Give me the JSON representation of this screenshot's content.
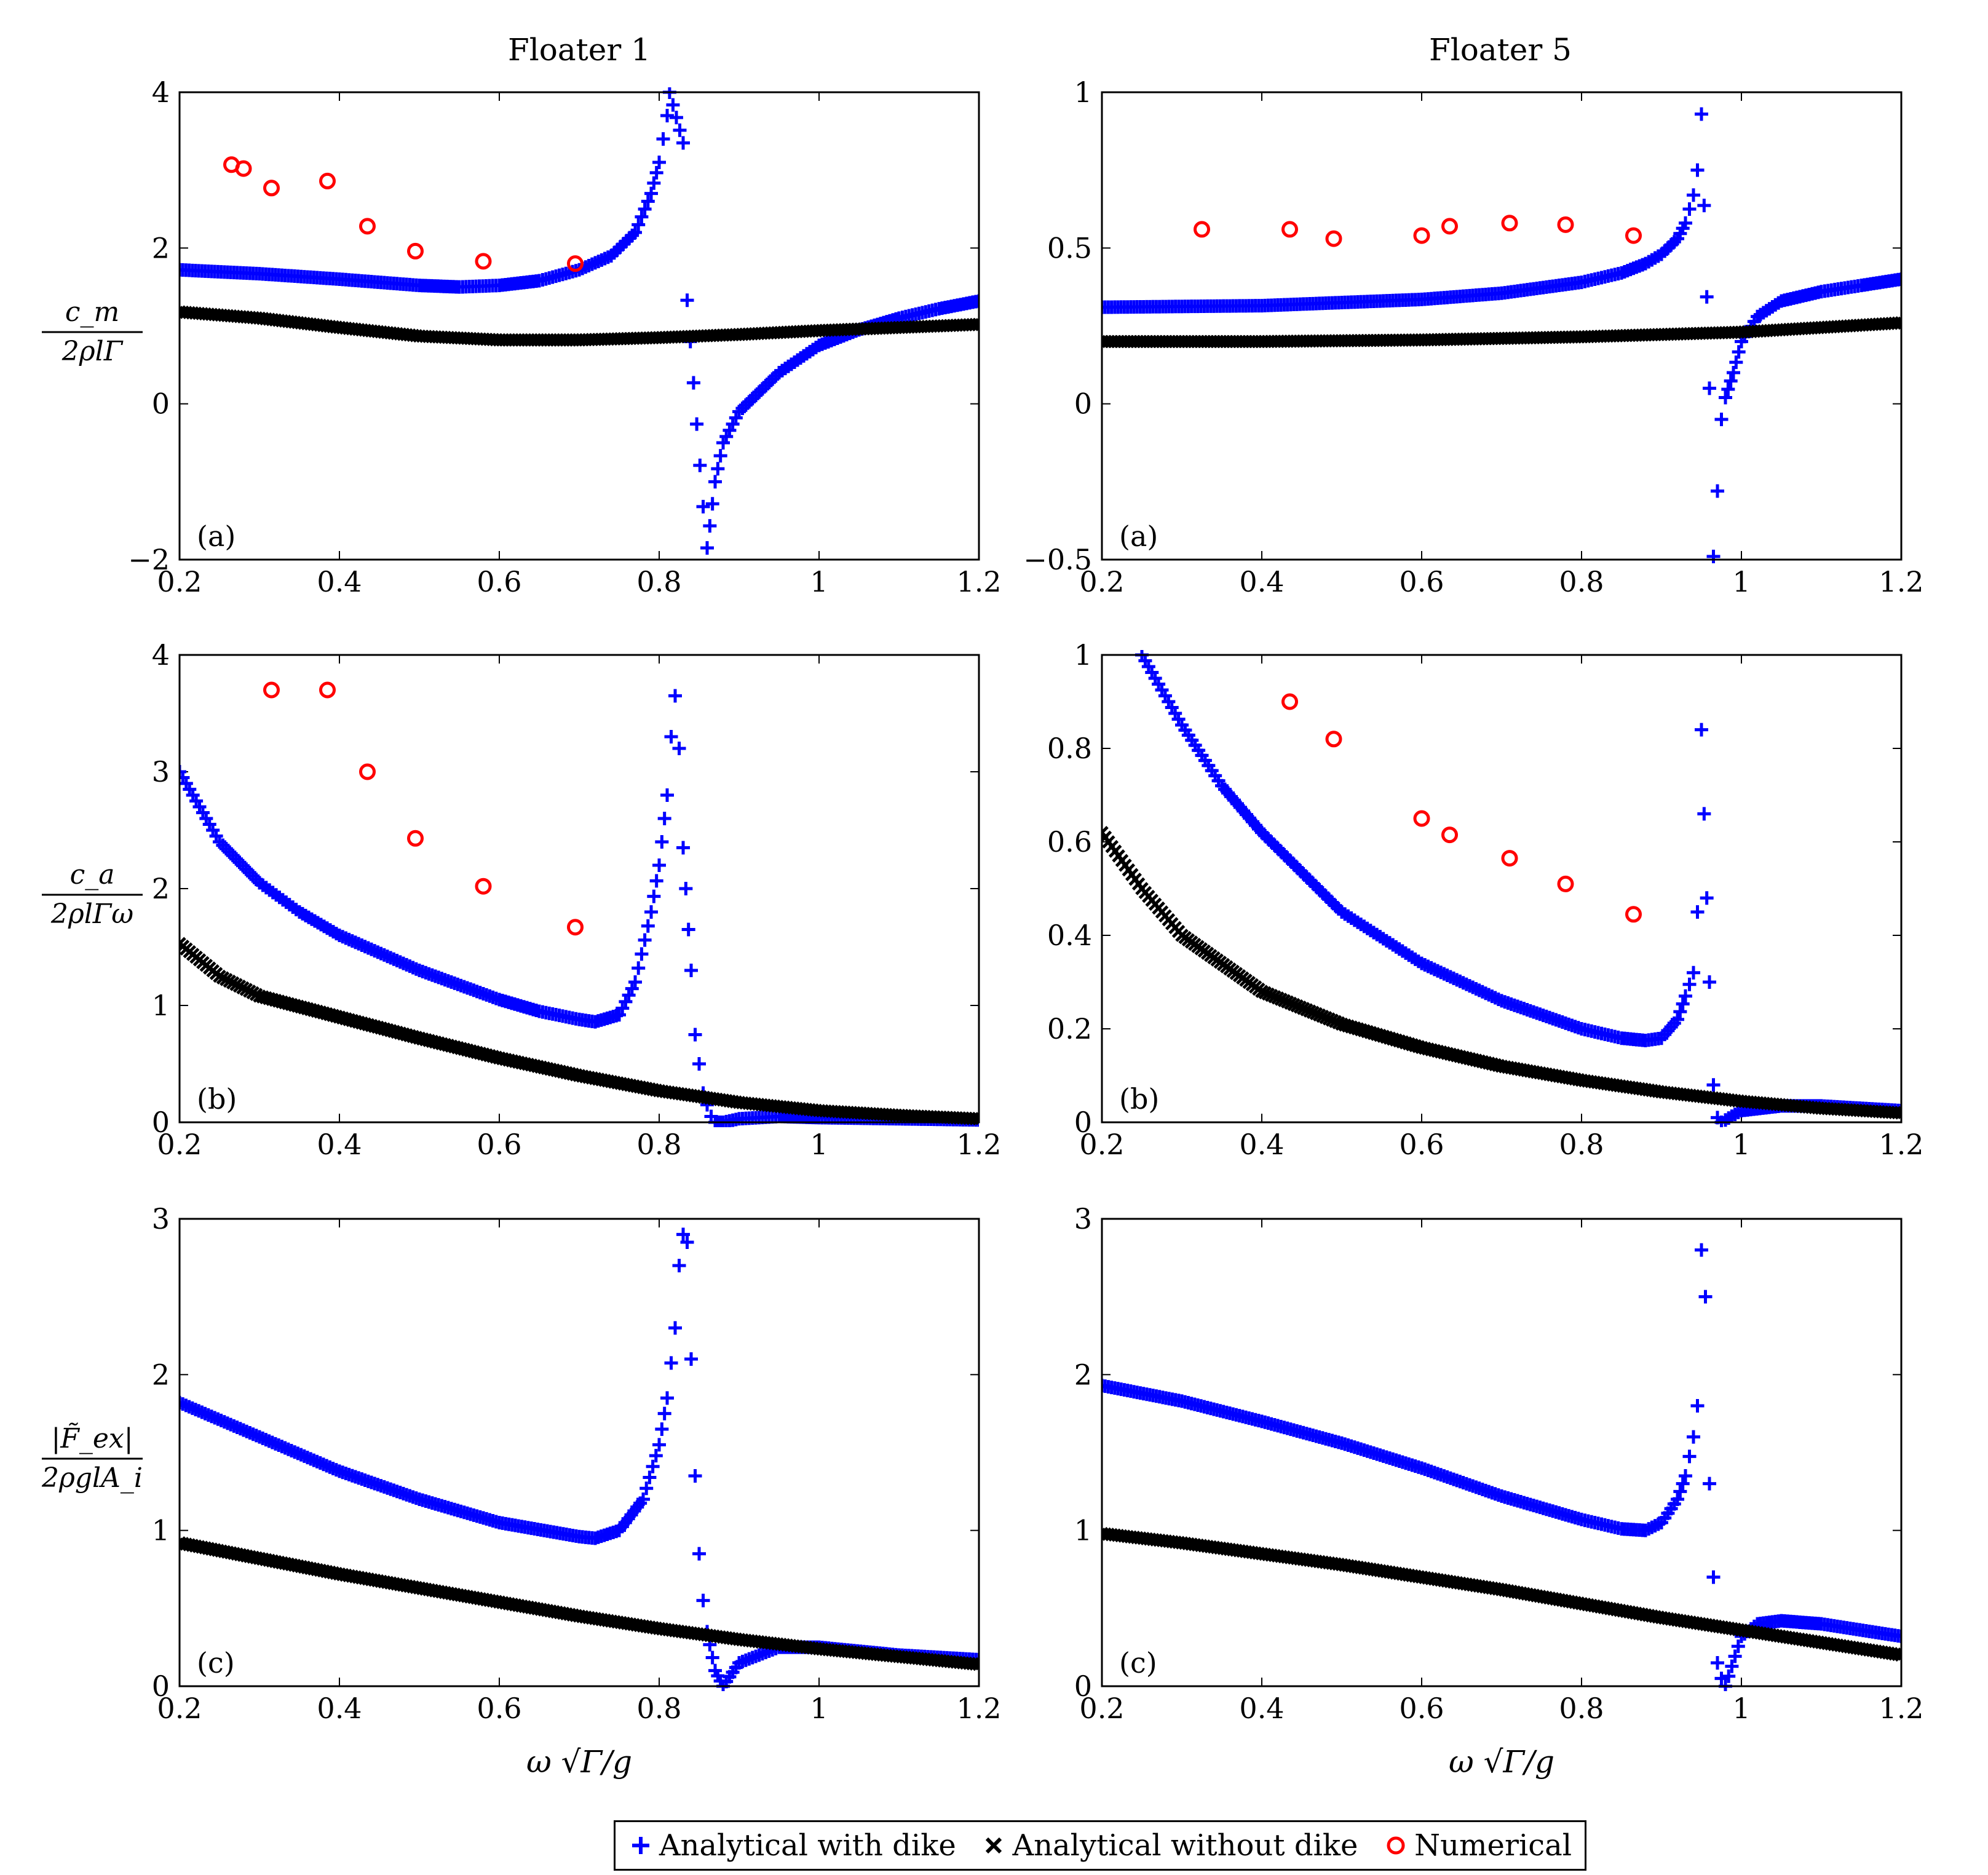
{
  "columns": [
    "Floater 1",
    "Floater 5"
  ],
  "legend": [
    {
      "label": "Analytical with dike",
      "color": "#0000ff",
      "marker": "plus"
    },
    {
      "label": "Analytical without dike",
      "color": "#000000",
      "marker": "cross"
    },
    {
      "label": "Numerical",
      "color": "#ff0000",
      "marker": "circle"
    }
  ],
  "xlabel": "ω √Γ/g",
  "chart_data": [
    {
      "type": "scatter",
      "column": "Floater 1",
      "row": "cm",
      "panel_label": "(a)",
      "ylabel": "c_m / 2ρlΓ",
      "xlim": [
        0.2,
        1.2
      ],
      "ylim": [
        -2,
        4
      ],
      "xticks": [
        "0.2",
        "0.4",
        "0.6",
        "0.8",
        "1",
        "1.2"
      ],
      "xtick_values": [
        0.2,
        0.4,
        0.6,
        0.8,
        1.0,
        1.2
      ],
      "yticks": [
        "−2",
        "0",
        "2",
        "4"
      ],
      "ytick_values": [
        -2,
        0,
        2,
        4
      ],
      "series": [
        {
          "name": "Analytical with dike",
          "x": [
            0.2,
            0.3,
            0.4,
            0.5,
            0.55,
            0.6,
            0.65,
            0.7,
            0.74,
            0.77,
            0.79,
            0.8,
            0.805,
            0.81,
            0.813,
            0.83,
            0.835,
            0.855,
            0.86,
            0.87,
            0.88,
            0.9,
            0.95,
            1.0,
            1.05,
            1.1,
            1.15,
            1.2
          ],
          "y": [
            1.72,
            1.67,
            1.6,
            1.52,
            1.5,
            1.52,
            1.58,
            1.72,
            1.9,
            2.2,
            2.7,
            3.1,
            3.4,
            3.7,
            4.0,
            3.35,
            1.33,
            -1.32,
            -1.85,
            -1.0,
            -0.5,
            -0.1,
            0.4,
            0.75,
            0.95,
            1.1,
            1.22,
            1.32
          ]
        },
        {
          "name": "Analytical without dike",
          "x": [
            0.2,
            0.3,
            0.4,
            0.5,
            0.6,
            0.7,
            0.8,
            0.9,
            1.0,
            1.1,
            1.2
          ],
          "y": [
            1.18,
            1.1,
            0.98,
            0.87,
            0.82,
            0.82,
            0.85,
            0.89,
            0.94,
            0.98,
            1.02
          ]
        },
        {
          "name": "Numerical",
          "x": [
            0.265,
            0.28,
            0.315,
            0.385,
            0.435,
            0.495,
            0.58,
            0.695
          ],
          "y": [
            3.07,
            3.02,
            2.77,
            2.86,
            2.28,
            1.96,
            1.83,
            1.8
          ]
        }
      ]
    },
    {
      "type": "scatter",
      "column": "Floater 5",
      "row": "cm",
      "panel_label": "(a)",
      "ylabel": "",
      "xlim": [
        0.2,
        1.2
      ],
      "ylim": [
        -0.5,
        1
      ],
      "xticks": [
        "0.2",
        "0.4",
        "0.6",
        "0.8",
        "1",
        "1.2"
      ],
      "xtick_values": [
        0.2,
        0.4,
        0.6,
        0.8,
        1.0,
        1.2
      ],
      "yticks": [
        "−0.5",
        "0",
        "0.5",
        "1"
      ],
      "ytick_values": [
        -0.5,
        0,
        0.5,
        1
      ],
      "series": [
        {
          "name": "Analytical with dike",
          "x": [
            0.2,
            0.4,
            0.6,
            0.7,
            0.8,
            0.85,
            0.88,
            0.9,
            0.92,
            0.93,
            0.94,
            0.945,
            0.95,
            0.96,
            0.965,
            0.97,
            0.975,
            0.98,
            0.99,
            1.0,
            1.02,
            1.05,
            1.1,
            1.15,
            1.2
          ],
          "y": [
            0.31,
            0.315,
            0.335,
            0.355,
            0.39,
            0.42,
            0.45,
            0.48,
            0.53,
            0.58,
            0.67,
            0.75,
            0.93,
            0.05,
            -0.49,
            -0.28,
            -0.05,
            0.02,
            0.1,
            0.2,
            0.28,
            0.33,
            0.36,
            0.38,
            0.4
          ]
        },
        {
          "name": "Analytical without dike",
          "x": [
            0.2,
            0.4,
            0.6,
            0.8,
            1.0,
            1.2
          ],
          "y": [
            0.2,
            0.2,
            0.205,
            0.215,
            0.23,
            0.26
          ]
        },
        {
          "name": "Numerical",
          "x": [
            0.325,
            0.435,
            0.49,
            0.6,
            0.635,
            0.71,
            0.78,
            0.865
          ],
          "y": [
            0.56,
            0.56,
            0.53,
            0.54,
            0.57,
            0.58,
            0.575,
            0.54
          ]
        }
      ]
    },
    {
      "type": "scatter",
      "column": "Floater 1",
      "row": "ca",
      "panel_label": "(b)",
      "ylabel": "c_a / 2ρlΓω",
      "xlim": [
        0.2,
        1.2
      ],
      "ylim": [
        0,
        4
      ],
      "xticks": [
        "0.2",
        "0.4",
        "0.6",
        "0.8",
        "1",
        "1.2"
      ],
      "xtick_values": [
        0.2,
        0.4,
        0.6,
        0.8,
        1.0,
        1.2
      ],
      "yticks": [
        "0",
        "1",
        "2",
        "3",
        "4"
      ],
      "ytick_values": [
        0,
        1,
        2,
        3,
        4
      ],
      "series": [
        {
          "name": "Analytical with dike",
          "x": [
            0.2,
            0.25,
            0.3,
            0.35,
            0.4,
            0.5,
            0.6,
            0.65,
            0.7,
            0.72,
            0.75,
            0.77,
            0.79,
            0.8,
            0.81,
            0.815,
            0.82,
            0.825,
            0.83,
            0.84,
            0.845,
            0.85,
            0.855,
            0.86,
            0.865,
            0.87,
            0.88,
            0.9,
            0.95,
            1.0,
            1.1,
            1.2
          ],
          "y": [
            3.0,
            2.4,
            2.05,
            1.8,
            1.6,
            1.3,
            1.05,
            0.95,
            0.88,
            0.86,
            0.92,
            1.2,
            1.8,
            2.2,
            2.8,
            3.3,
            3.65,
            3.2,
            2.35,
            1.3,
            0.75,
            0.5,
            0.25,
            0.15,
            0.05,
            0.0,
            0.0,
            0.03,
            0.05,
            0.04,
            0.03,
            0.02
          ]
        },
        {
          "name": "Analytical without dike",
          "x": [
            0.2,
            0.25,
            0.3,
            0.4,
            0.5,
            0.6,
            0.7,
            0.8,
            0.9,
            1.0,
            1.1,
            1.2
          ],
          "y": [
            1.53,
            1.25,
            1.08,
            0.9,
            0.72,
            0.55,
            0.4,
            0.27,
            0.17,
            0.1,
            0.06,
            0.03
          ]
        },
        {
          "name": "Numerical",
          "x": [
            0.315,
            0.385,
            0.435,
            0.495,
            0.58,
            0.695
          ],
          "y": [
            3.7,
            3.7,
            3.0,
            2.43,
            2.02,
            1.67
          ]
        }
      ]
    },
    {
      "type": "scatter",
      "column": "Floater 5",
      "row": "ca",
      "panel_label": "(b)",
      "ylabel": "",
      "xlim": [
        0.2,
        1.2
      ],
      "ylim": [
        0,
        1
      ],
      "xticks": [
        "0.2",
        "0.4",
        "0.6",
        "0.8",
        "1",
        "1.2"
      ],
      "xtick_values": [
        0.2,
        0.4,
        0.6,
        0.8,
        1.0,
        1.2
      ],
      "yticks": [
        "0",
        "0.2",
        "0.4",
        "0.6",
        "0.8",
        "1"
      ],
      "ytick_values": [
        0,
        0.2,
        0.4,
        0.6,
        0.8,
        1
      ],
      "series": [
        {
          "name": "Analytical with dike",
          "x": [
            0.25,
            0.3,
            0.35,
            0.4,
            0.5,
            0.6,
            0.7,
            0.8,
            0.85,
            0.88,
            0.9,
            0.92,
            0.93,
            0.94,
            0.945,
            0.95,
            0.96,
            0.965,
            0.97,
            0.975,
            0.98,
            1.0,
            1.05,
            1.1,
            1.2
          ],
          "y": [
            1.0,
            0.85,
            0.72,
            0.62,
            0.45,
            0.34,
            0.26,
            0.2,
            0.18,
            0.175,
            0.18,
            0.22,
            0.27,
            0.32,
            0.45,
            0.84,
            0.3,
            0.08,
            0.01,
            0.0,
            0.005,
            0.025,
            0.035,
            0.035,
            0.025
          ]
        },
        {
          "name": "Analytical without dike",
          "x": [
            0.2,
            0.25,
            0.3,
            0.4,
            0.5,
            0.6,
            0.7,
            0.8,
            0.9,
            1.0,
            1.1,
            1.2
          ],
          "y": [
            0.62,
            0.5,
            0.4,
            0.28,
            0.21,
            0.16,
            0.12,
            0.09,
            0.065,
            0.045,
            0.03,
            0.02
          ]
        },
        {
          "name": "Numerical",
          "x": [
            0.435,
            0.49,
            0.6,
            0.635,
            0.71,
            0.78,
            0.865
          ],
          "y": [
            0.9,
            0.82,
            0.65,
            0.615,
            0.565,
            0.51,
            0.445
          ]
        }
      ]
    },
    {
      "type": "scatter",
      "column": "Floater 1",
      "row": "fex",
      "panel_label": "(c)",
      "ylabel": "|F̃_ex| / 2ρglA_i",
      "xlim": [
        0.2,
        1.2
      ],
      "ylim": [
        0,
        3
      ],
      "xticks": [
        "0.2",
        "0.4",
        "0.6",
        "0.8",
        "1",
        "1.2"
      ],
      "xtick_values": [
        0.2,
        0.4,
        0.6,
        0.8,
        1.0,
        1.2
      ],
      "yticks": [
        "0",
        "1",
        "2",
        "3"
      ],
      "ytick_values": [
        0,
        1,
        2,
        3
      ],
      "series": [
        {
          "name": "Analytical with dike",
          "x": [
            0.2,
            0.3,
            0.4,
            0.5,
            0.6,
            0.7,
            0.72,
            0.75,
            0.78,
            0.8,
            0.81,
            0.82,
            0.825,
            0.83,
            0.835,
            0.84,
            0.845,
            0.85,
            0.855,
            0.86,
            0.87,
            0.88,
            0.9,
            0.95,
            1.0,
            1.1,
            1.2
          ],
          "y": [
            1.82,
            1.6,
            1.38,
            1.2,
            1.05,
            0.96,
            0.95,
            1.0,
            1.2,
            1.55,
            1.85,
            2.3,
            2.7,
            2.9,
            2.85,
            2.1,
            1.35,
            0.85,
            0.55,
            0.35,
            0.1,
            0.0,
            0.15,
            0.25,
            0.25,
            0.2,
            0.17
          ]
        },
        {
          "name": "Analytical without dike",
          "x": [
            0.2,
            0.3,
            0.4,
            0.5,
            0.6,
            0.7,
            0.8,
            0.9,
            1.0,
            1.1,
            1.2
          ],
          "y": [
            0.92,
            0.82,
            0.72,
            0.63,
            0.54,
            0.45,
            0.37,
            0.3,
            0.24,
            0.19,
            0.14
          ]
        }
      ]
    },
    {
      "type": "scatter",
      "column": "Floater 5",
      "row": "fex",
      "panel_label": "(c)",
      "ylabel": "",
      "xlim": [
        0.2,
        1.2
      ],
      "ylim": [
        0,
        3
      ],
      "xticks": [
        "0.2",
        "0.4",
        "0.6",
        "0.8",
        "1",
        "1.2"
      ],
      "xtick_values": [
        0.2,
        0.4,
        0.6,
        0.8,
        1.0,
        1.2
      ],
      "yticks": [
        "0",
        "1",
        "2",
        "3"
      ],
      "ytick_values": [
        0,
        1,
        2,
        3
      ],
      "series": [
        {
          "name": "Analytical with dike",
          "x": [
            0.2,
            0.3,
            0.4,
            0.5,
            0.6,
            0.7,
            0.8,
            0.85,
            0.88,
            0.9,
            0.92,
            0.93,
            0.94,
            0.945,
            0.95,
            0.955,
            0.96,
            0.965,
            0.97,
            0.975,
            0.98,
            1.0,
            1.02,
            1.05,
            1.1,
            1.2
          ],
          "y": [
            1.93,
            1.83,
            1.7,
            1.56,
            1.4,
            1.22,
            1.07,
            1.01,
            1.0,
            1.05,
            1.2,
            1.35,
            1.6,
            1.8,
            2.8,
            2.5,
            1.3,
            0.7,
            0.15,
            0.05,
            0.0,
            0.32,
            0.4,
            0.42,
            0.4,
            0.32
          ]
        },
        {
          "name": "Analytical without dike",
          "x": [
            0.2,
            0.3,
            0.4,
            0.5,
            0.6,
            0.7,
            0.8,
            0.9,
            1.0,
            1.1,
            1.2
          ],
          "y": [
            0.98,
            0.92,
            0.85,
            0.78,
            0.7,
            0.62,
            0.53,
            0.44,
            0.36,
            0.28,
            0.2
          ]
        }
      ]
    }
  ]
}
